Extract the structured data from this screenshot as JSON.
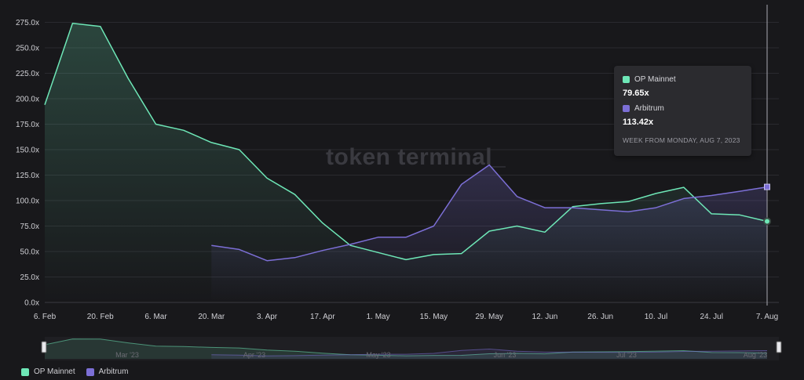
{
  "watermark": "token terminal_",
  "chart_data": {
    "type": "line",
    "x": [
      "6. Feb",
      "13. Feb",
      "20. Feb",
      "27. Feb",
      "6. Mar",
      "13. Mar",
      "20. Mar",
      "27. Mar",
      "3. Apr",
      "10. Apr",
      "17. Apr",
      "24. Apr",
      "1. May",
      "8. May",
      "15. May",
      "22. May",
      "29. May",
      "5. Jun",
      "12. Jun",
      "19. Jun",
      "26. Jun",
      "3. Jul",
      "10. Jul",
      "17. Jul",
      "24. Jul",
      "31. Jul",
      "7. Aug"
    ],
    "x_tick_labels": [
      "6. Feb",
      "20. Feb",
      "6. Mar",
      "20. Mar",
      "3. Apr",
      "17. Apr",
      "1. May",
      "15. May",
      "29. May",
      "12. Jun",
      "26. Jun",
      "10. Jul",
      "24. Jul",
      "7. Aug"
    ],
    "y_tick_labels": [
      "0.0x",
      "25.0x",
      "50.0x",
      "75.0x",
      "100.0x",
      "125.0x",
      "150.0x",
      "175.0x",
      "200.0x",
      "225.0x",
      "250.0x",
      "275.0x"
    ],
    "ylim": [
      0,
      280
    ],
    "grid": true,
    "legend_position": "bottom-left",
    "series": [
      {
        "name": "OP Mainnet",
        "color": "#6ee7b7",
        "values": [
          194,
          274,
          271,
          220,
          175,
          169,
          157,
          150,
          122,
          106,
          78,
          56,
          49,
          42,
          47,
          48,
          70,
          75,
          69,
          94,
          97,
          99,
          107,
          113,
          87,
          86,
          79.65
        ]
      },
      {
        "name": "Arbitrum",
        "color": "#7c6fd6",
        "values": [
          null,
          null,
          null,
          null,
          null,
          null,
          56,
          52,
          41,
          44,
          51,
          57,
          64,
          64,
          75,
          116,
          135,
          104,
          93,
          93,
          91,
          89,
          93,
          102,
          105,
          109,
          113.42
        ]
      }
    ],
    "tooltip": {
      "entries": [
        {
          "name": "OP Mainnet",
          "value": "79.65x",
          "color": "#6ee7b7"
        },
        {
          "name": "Arbitrum",
          "value": "113.42x",
          "color": "#7c6fd6"
        }
      ],
      "footer": "WEEK FROM MONDAY, AUG 7, 2023"
    },
    "navigator": {
      "labels": [
        "Mar '23",
        "Apr '23",
        "May '23",
        "Jun '23",
        "Jul '23",
        "Aug '23"
      ]
    }
  }
}
